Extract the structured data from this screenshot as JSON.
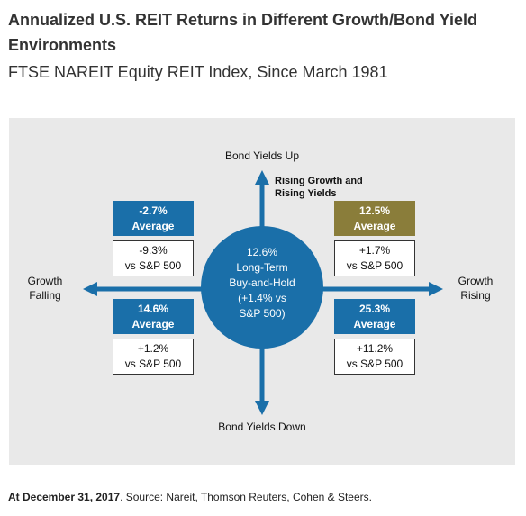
{
  "header": {
    "title": "Annualized U.S. REIT Returns in Different Growth/Bond Yield Environments",
    "subtitle": "FTSE NAREIT Equity REIT Index, Since March 1981"
  },
  "axes": {
    "top": "Bond Yields Up",
    "bottom": "Bond Yields Down",
    "left_line1": "Growth",
    "left_line2": "Falling",
    "right_line1": "Growth",
    "right_line2": "Rising"
  },
  "quadrant_note": {
    "line1": "Rising Growth and",
    "line2": "Rising Yields"
  },
  "center": {
    "line1": "12.6%",
    "line2": "Long-Term",
    "line3": "Buy-and-Hold",
    "line4": "(+1.4% vs",
    "line5": "S&P 500)"
  },
  "quadrants": {
    "top_left": {
      "avg_value": "-2.7%",
      "avg_label": "Average",
      "vs_value": "-9.3%",
      "vs_label": "vs S&P 500"
    },
    "top_right": {
      "avg_value": "12.5%",
      "avg_label": "Average",
      "vs_value": "+1.7%",
      "vs_label": "vs S&P 500"
    },
    "bottom_left": {
      "avg_value": "14.6%",
      "avg_label": "Average",
      "vs_value": "+1.2%",
      "vs_label": "vs S&P 500"
    },
    "bottom_right": {
      "avg_value": "25.3%",
      "avg_label": "Average",
      "vs_value": "+11.2%",
      "vs_label": "vs S&P 500"
    }
  },
  "colors": {
    "blue": "#1a6fa9",
    "olive": "#8a7d3a",
    "panel": "#e9e9e9"
  },
  "footer": {
    "date_label": "At December 31, 2017",
    "source": ". Source: Nareit, Thomson Reuters, Cohen & Steers."
  }
}
